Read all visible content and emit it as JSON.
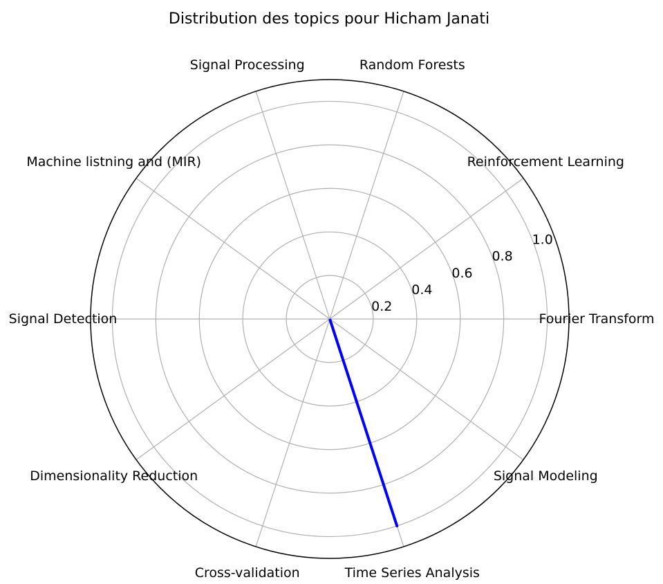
{
  "chart_data": {
    "type": "radar",
    "title": "Distribution des topics pour Hicham Janati",
    "categories": [
      "Fourier Transform",
      "Reinforcement Learning",
      "Random Forests",
      "Signal Processing",
      "Machine listning and (MIR)",
      "Signal Detection",
      "Dimensionality Reduction",
      "Cross-validation",
      "Time Series Analysis",
      "Signal Modeling"
    ],
    "series": [
      {
        "values": [
          0,
          0,
          0,
          0,
          0,
          0,
          0,
          0,
          1.0,
          0
        ]
      }
    ],
    "r_ticks": [
      "0.2",
      "0.4",
      "0.6",
      "0.8",
      "1.0"
    ],
    "r_tick_values": [
      0.2,
      0.4,
      0.6,
      0.8,
      1.0
    ],
    "rlim": [
      0,
      1.1
    ],
    "grid": true,
    "series_color": "#0000ff",
    "grid_color": "#b0b0b0",
    "frame_color": "#000000"
  }
}
